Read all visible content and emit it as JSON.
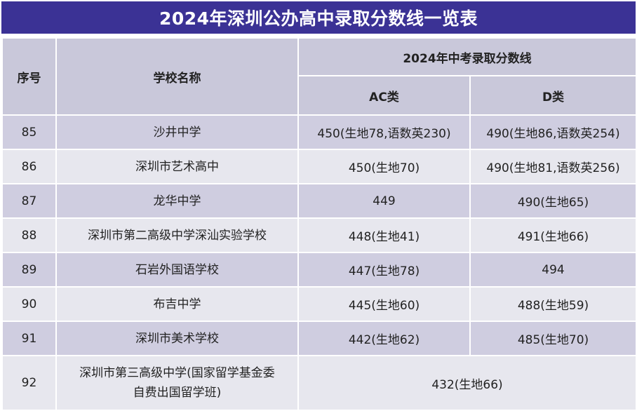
{
  "title": "2024年深圳公办高中录取分数线一览表",
  "headers": {
    "seq": "序号",
    "school": "学校名称",
    "group": "2024年中考录取分数线",
    "ac": "AC类",
    "d": "D类"
  },
  "rows": [
    {
      "no": "85",
      "school": "沙井中学",
      "ac": "450(生地78,语数英230)",
      "d": "490(生地86,语数英254)"
    },
    {
      "no": "86",
      "school": "深圳市艺术高中",
      "ac": "450(生地70)",
      "d": "490(生地81,语数英256)"
    },
    {
      "no": "87",
      "school": "龙华中学",
      "ac": "449",
      "d": "490(生地65)"
    },
    {
      "no": "88",
      "school": "深圳市第二高级中学深汕实验学校",
      "ac": "448(生地41)",
      "d": "491(生地66)"
    },
    {
      "no": "89",
      "school": "石岩外国语学校",
      "ac": "447(生地78)",
      "d": "494"
    },
    {
      "no": "90",
      "school": "布吉中学",
      "ac": "445(生地60)",
      "d": "488(生地59)"
    },
    {
      "no": "91",
      "school": "深圳市美术学校",
      "ac": "442(生地62)",
      "d": "485(生地70)"
    }
  ],
  "last_row": {
    "no": "92",
    "school_line1": "深圳市第三高级中学(国家留学基金委",
    "school_line2": "自费出国留学班)",
    "score": "432(生地66)"
  }
}
